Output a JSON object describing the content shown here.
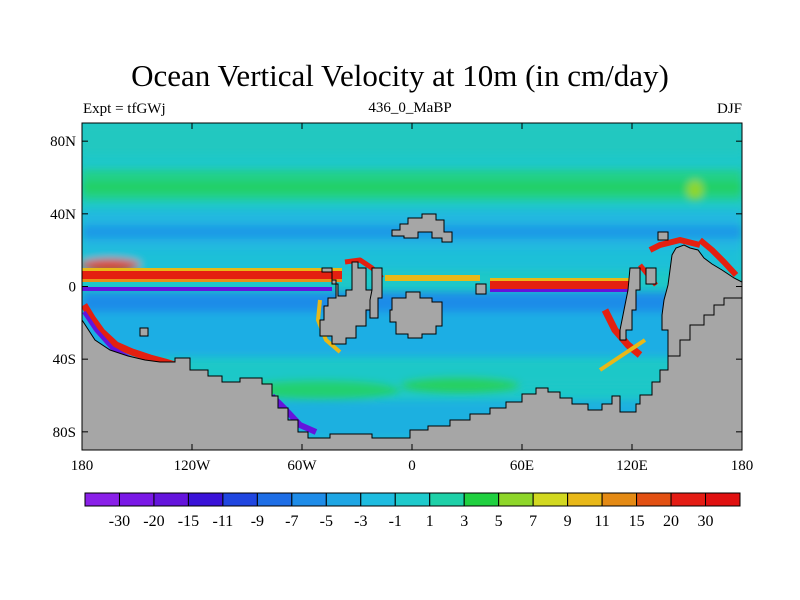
{
  "title": "Ocean Vertical Velocity at 10m (in cm/day)",
  "left_subtitle": "Expt = tfGWj",
  "center_subtitle": "436_0_MaBP",
  "right_subtitle": "DJF",
  "map": {
    "type": "filled-contour-map",
    "variable": "Ocean Vertical Velocity at 10m",
    "units": "cm/day",
    "lon_range": [
      -180,
      180
    ],
    "lat_range": [
      -90,
      90
    ],
    "x_ticks": [
      {
        "lon": -180,
        "label": "180"
      },
      {
        "lon": -120,
        "label": "120W"
      },
      {
        "lon": -60,
        "label": "60W"
      },
      {
        "lon": 0,
        "label": "0"
      },
      {
        "lon": 60,
        "label": "60E"
      },
      {
        "lon": 120,
        "label": "120E"
      },
      {
        "lon": 180,
        "label": "180"
      }
    ],
    "y_ticks": [
      {
        "lat": 80,
        "label": "80N"
      },
      {
        "lat": 40,
        "label": "40N"
      },
      {
        "lat": 0,
        "label": "0"
      },
      {
        "lat": -40,
        "label": "40S"
      },
      {
        "lat": -80,
        "label": "80S"
      }
    ],
    "land_color": "#a6a6a6",
    "ocean_background_color": "#1ec8c8"
  },
  "colorbar": {
    "labels": [
      "-30",
      "-20",
      "-15",
      "-11",
      "-9",
      "-7",
      "-5",
      "-3",
      "-1",
      "1",
      "3",
      "5",
      "7",
      "9",
      "11",
      "15",
      "20",
      "30"
    ],
    "colors": [
      "#8a20e8",
      "#7a18e6",
      "#6414dc",
      "#3a12d8",
      "#2046e0",
      "#1e6ee6",
      "#1e8ce8",
      "#1ea6e4",
      "#1ebce0",
      "#1ecacc",
      "#1ed0a8",
      "#20d040",
      "#8ed62a",
      "#d2d820",
      "#e8b818",
      "#e48a14",
      "#e25012",
      "#e41c14",
      "#e01010"
    ]
  }
}
